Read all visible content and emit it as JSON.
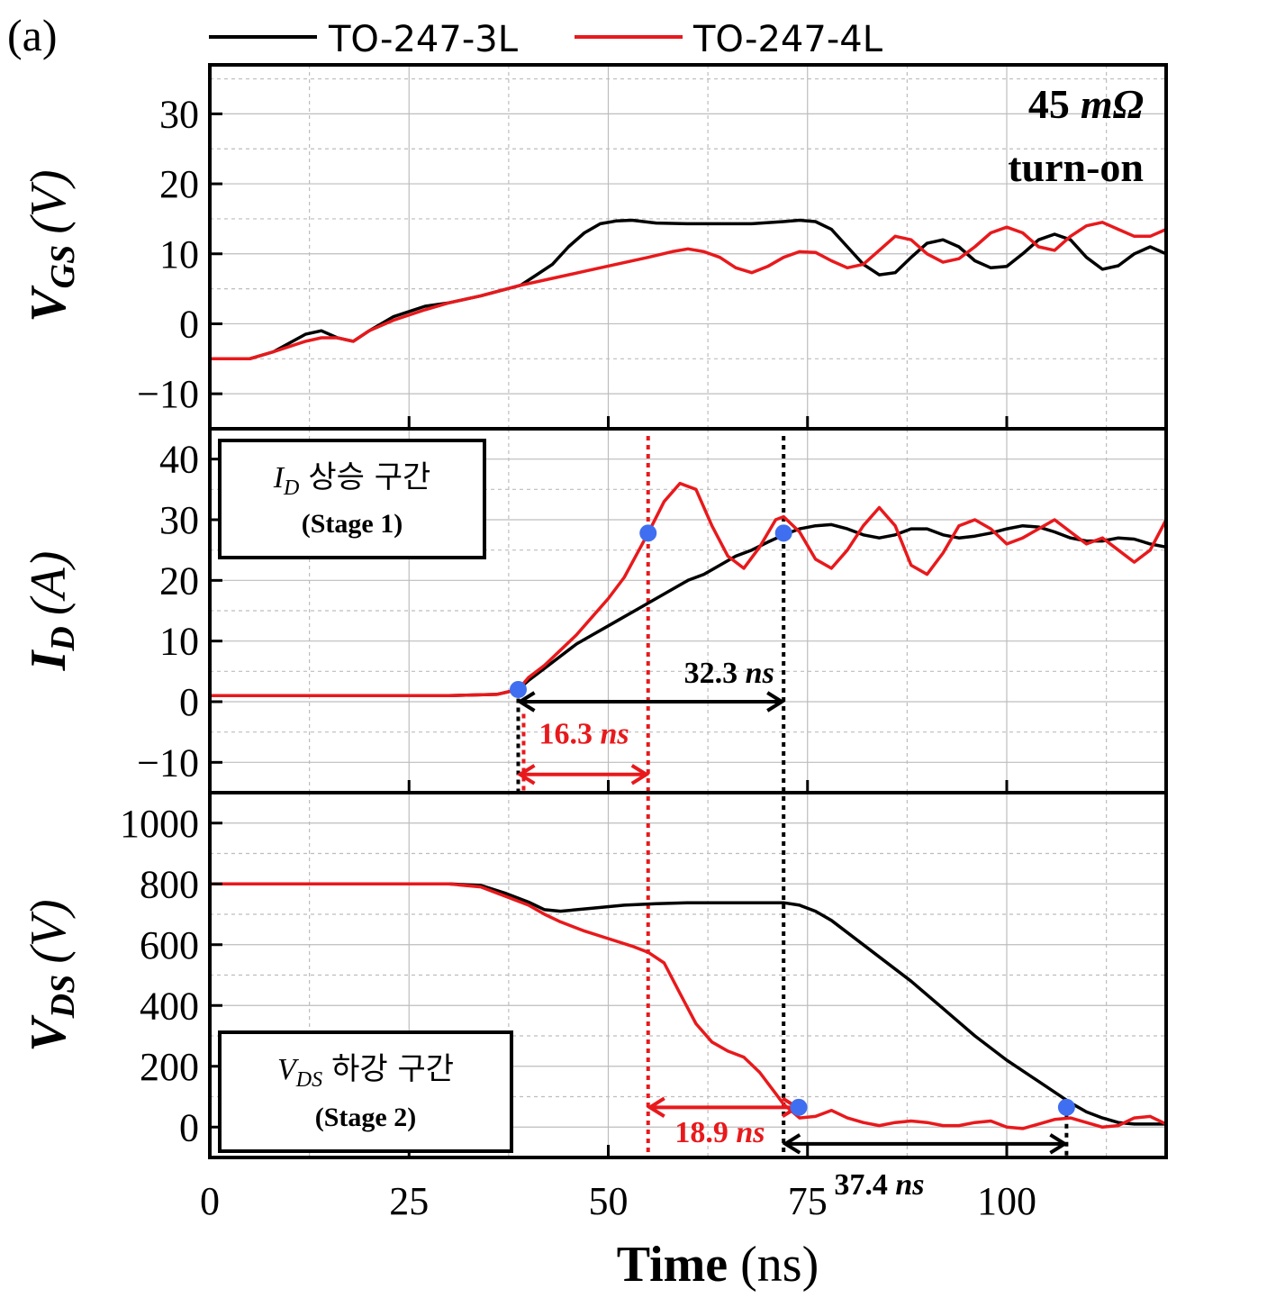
{
  "panel_label": "(a)",
  "legend": [
    {
      "name": "TO-247-3L",
      "color": "#000000"
    },
    {
      "name": "TO-247-4L",
      "color": "#e8191c"
    }
  ],
  "note": {
    "line1_value": "45",
    "line1_unit": "mΩ",
    "line2": "turn-on"
  },
  "stage1_box": {
    "title": "상승 구간",
    "title_var": "I",
    "title_sub": "D",
    "subtitle": "(Stage 1)"
  },
  "stage2_box": {
    "title": "하강 구간",
    "title_var": "V",
    "title_sub": "DS",
    "subtitle": "(Stage 2)"
  },
  "annotations": {
    "ann_32": {
      "value": "32.3",
      "unit": "ns",
      "color": "#000000"
    },
    "ann_16": {
      "value": "16.3",
      "unit": "ns",
      "color": "#e8191c"
    },
    "ann_18": {
      "value": "18.9",
      "unit": "ns",
      "color": "#e8191c"
    },
    "ann_37": {
      "value": "37.4",
      "unit": "ns",
      "color": "#000000"
    }
  },
  "colors": {
    "black": "#000000",
    "red": "#e8191c",
    "marker": "#3f6ff0",
    "grid": "#bdbdbd"
  },
  "chart_data": [
    {
      "type": "line",
      "ylabel": {
        "main": "V",
        "sub": "GS",
        "unit": "(V)"
      },
      "xlabel": "",
      "xlim": [
        0,
        120
      ],
      "ylim": [
        -15,
        37
      ],
      "yticks": [
        -10,
        0,
        10,
        20,
        30
      ],
      "ytick_labels": [
        "−10",
        "0",
        "10",
        "20",
        "30"
      ],
      "grid": true,
      "series": [
        {
          "name": "TO-247-3L",
          "x": [
            0,
            5,
            8,
            12,
            14,
            16,
            18,
            20,
            23,
            27,
            30,
            34,
            39,
            41,
            43,
            45,
            47,
            49,
            51,
            53,
            56,
            60,
            64,
            68,
            72,
            74,
            76,
            78,
            80,
            82,
            84,
            86,
            88,
            90,
            92,
            94,
            96,
            98,
            100,
            102,
            104,
            106,
            108,
            110,
            112,
            114,
            116,
            118,
            120
          ],
          "y": [
            -5,
            -5,
            -4,
            -1.5,
            -1,
            -2,
            -2.5,
            -1,
            1,
            2.5,
            3,
            4,
            5.5,
            7,
            8.5,
            11,
            13,
            14.3,
            14.7,
            14.8,
            14.4,
            14.3,
            14.3,
            14.3,
            14.6,
            14.8,
            14.6,
            13.5,
            11,
            8.5,
            7,
            7.3,
            9.5,
            11.5,
            12,
            11,
            9,
            8,
            8.2,
            10,
            12,
            12.8,
            12,
            9.5,
            7.8,
            8.3,
            10,
            11,
            10
          ]
        },
        {
          "name": "TO-247-4L",
          "x": [
            0,
            5,
            8,
            12,
            14,
            16,
            18,
            20,
            23,
            27,
            30,
            34,
            39,
            43,
            47,
            51,
            55,
            58,
            60,
            62,
            64,
            66,
            68,
            70,
            72,
            74,
            76,
            78,
            80,
            82,
            84,
            86,
            88,
            90,
            92,
            94,
            96,
            98,
            100,
            102,
            104,
            106,
            108,
            110,
            112,
            114,
            116,
            118,
            120
          ],
          "y": [
            -5,
            -5,
            -4,
            -2.5,
            -2,
            -2,
            -2.5,
            -1,
            0.5,
            2,
            3,
            4,
            5.5,
            6.5,
            7.5,
            8.5,
            9.5,
            10.3,
            10.7,
            10.3,
            9.5,
            8,
            7.3,
            8.2,
            9.5,
            10.3,
            10.2,
            9,
            8,
            8.5,
            10.5,
            12.5,
            12,
            10,
            8.8,
            9.3,
            11,
            13,
            13.8,
            13,
            11,
            10.5,
            12.5,
            14,
            14.5,
            13.5,
            12.5,
            12.5,
            13.5
          ]
        }
      ]
    },
    {
      "type": "line",
      "ylabel": {
        "main": "I",
        "sub": "D",
        "unit": "(A)"
      },
      "xlabel": "",
      "xlim": [
        0,
        120
      ],
      "ylim": [
        -15,
        45
      ],
      "yticks": [
        -10,
        0,
        10,
        20,
        30,
        40
      ],
      "ytick_labels": [
        "−10",
        "0",
        "10",
        "20",
        "30",
        "40"
      ],
      "grid": true,
      "series": [
        {
          "name": "TO-247-3L",
          "x": [
            0,
            10,
            20,
            30,
            36,
            38.7,
            40,
            42,
            44,
            46,
            48,
            50,
            52,
            54,
            56,
            58,
            60,
            62,
            64,
            66,
            68,
            70,
            72,
            74,
            76,
            78,
            80,
            82,
            84,
            86,
            88,
            90,
            92,
            94,
            96,
            98,
            100,
            102,
            104,
            106,
            108,
            110,
            112,
            114,
            116,
            118,
            120
          ],
          "y": [
            1,
            1,
            1,
            1,
            1.2,
            2,
            3.5,
            5.5,
            7.5,
            9.5,
            11,
            12.5,
            14,
            15.5,
            17,
            18.5,
            20,
            21,
            22.5,
            24,
            25,
            26.3,
            27.5,
            28.5,
            29,
            29.2,
            28.5,
            27.5,
            27,
            27.5,
            28.5,
            28.5,
            27.5,
            27,
            27.3,
            27.8,
            28.5,
            29,
            28.8,
            28,
            27,
            26.5,
            26.5,
            27,
            26.8,
            26,
            25.5
          ]
        },
        {
          "name": "TO-247-4L",
          "x": [
            0,
            10,
            20,
            30,
            36,
            38.7,
            40,
            42,
            44,
            46,
            48,
            50,
            52,
            55,
            57,
            59,
            61,
            63,
            65,
            67,
            69,
            71,
            72,
            74,
            76,
            78,
            80,
            82,
            84,
            86,
            88,
            90,
            92,
            94,
            96,
            98,
            100,
            102,
            104,
            106,
            108,
            110,
            112,
            114,
            116,
            118,
            120
          ],
          "y": [
            1,
            1,
            1,
            1,
            1.2,
            2,
            4,
            6,
            8.5,
            11,
            14,
            17,
            20.5,
            27.8,
            33,
            36,
            35,
            29,
            24,
            22,
            25.5,
            30,
            30.5,
            28,
            23.5,
            22,
            25,
            29,
            32,
            29,
            22.5,
            21,
            24.5,
            29,
            30,
            28.5,
            26,
            27,
            28.5,
            30,
            28,
            26,
            27,
            25,
            23,
            25,
            30
          ]
        }
      ],
      "markers": [
        {
          "series": "both",
          "x": 38.7,
          "y": 2
        },
        {
          "series": "TO-247-4L",
          "x": 55,
          "y": 27.8
        },
        {
          "series": "TO-247-3L",
          "x": 72,
          "y": 27.8
        }
      ]
    },
    {
      "type": "line",
      "ylabel": {
        "main": "V",
        "sub": "DS",
        "unit": "(V)"
      },
      "xlabel": "Time",
      "xlabel_unit": "(ns)",
      "xlim": [
        0,
        120
      ],
      "xticks": [
        0,
        25,
        50,
        75,
        100
      ],
      "xtick_labels": [
        "0",
        "25",
        "50",
        "75",
        "100"
      ],
      "ylim": [
        -100,
        1100
      ],
      "yticks": [
        0,
        200,
        400,
        600,
        800,
        1000
      ],
      "ytick_labels": [
        "0",
        "200",
        "400",
        "600",
        "800",
        "1000"
      ],
      "grid": true,
      "series": [
        {
          "name": "TO-247-3L",
          "x": [
            0,
            10,
            20,
            30,
            34,
            37,
            40,
            42,
            44,
            48,
            52,
            56,
            60,
            64,
            68,
            72,
            74,
            76,
            78,
            80,
            84,
            88,
            92,
            96,
            100,
            104,
            108,
            110,
            112,
            114,
            116,
            118,
            120
          ],
          "y": [
            800,
            800,
            800,
            800,
            795,
            770,
            740,
            715,
            710,
            720,
            730,
            735,
            738,
            738,
            738,
            738,
            730,
            710,
            680,
            640,
            560,
            480,
            390,
            300,
            220,
            150,
            80,
            50,
            30,
            15,
            10,
            10,
            10
          ]
        },
        {
          "name": "TO-247-4L",
          "x": [
            0,
            10,
            20,
            30,
            34,
            37,
            40,
            42,
            44,
            47,
            50,
            53,
            55,
            57,
            59,
            61,
            63,
            65,
            67,
            69,
            71,
            72,
            74,
            76,
            78,
            80,
            82,
            84,
            86,
            88,
            90,
            92,
            94,
            96,
            98,
            100,
            102,
            104,
            106,
            108,
            110,
            112,
            114,
            116,
            118,
            120
          ],
          "y": [
            800,
            800,
            800,
            800,
            790,
            760,
            730,
            700,
            675,
            645,
            620,
            595,
            575,
            540,
            440,
            340,
            280,
            250,
            230,
            180,
            110,
            75,
            30,
            35,
            55,
            30,
            15,
            5,
            15,
            20,
            15,
            5,
            5,
            15,
            20,
            0,
            -5,
            10,
            25,
            30,
            15,
            0,
            5,
            30,
            35,
            10
          ]
        }
      ],
      "markers": [
        {
          "series": "TO-247-4L",
          "x": 73.9,
          "y": 65
        },
        {
          "series": "TO-247-3L",
          "x": 107.5,
          "y": 65
        }
      ]
    }
  ]
}
